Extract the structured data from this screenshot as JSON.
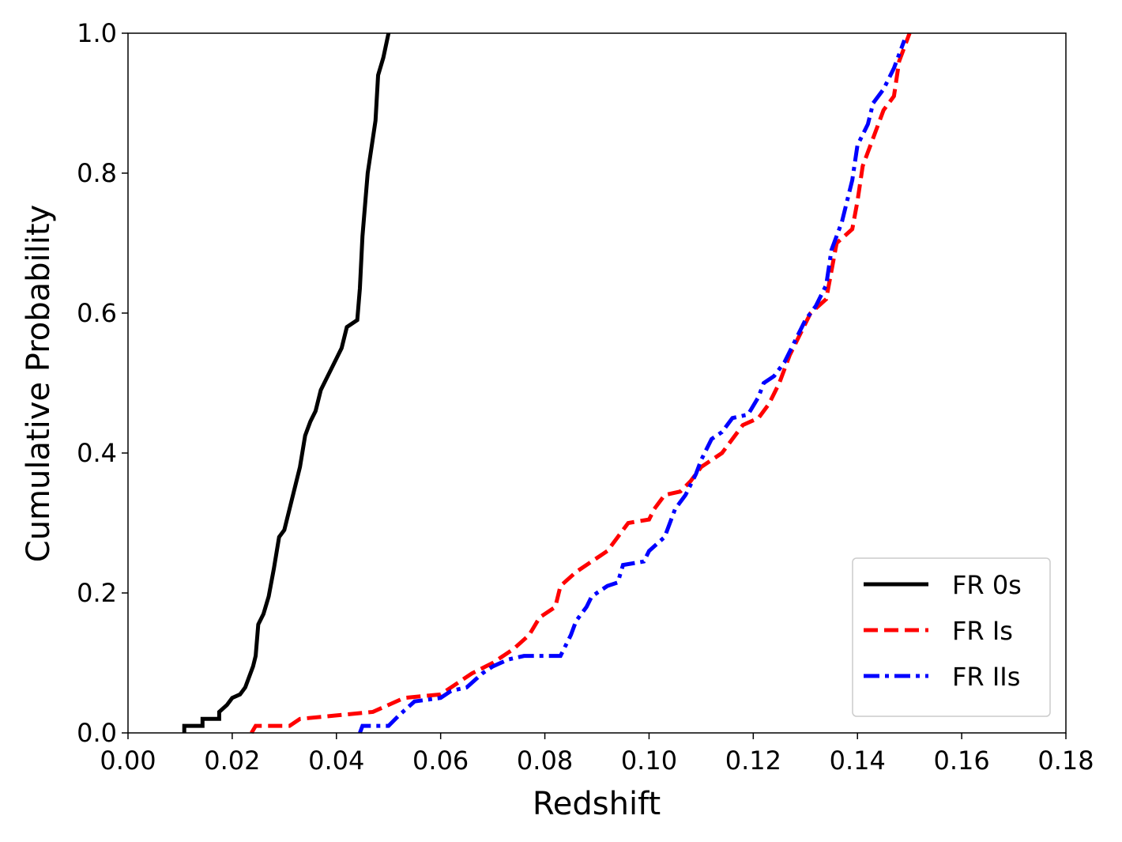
{
  "chart_data": {
    "type": "line",
    "xlabel": "Redshift",
    "ylabel": "Cumulative Probability",
    "xlim": [
      0,
      0.18
    ],
    "ylim": [
      0,
      1
    ],
    "xticks": [
      {
        "value": 0,
        "label": "0.00"
      },
      {
        "value": 0.02,
        "label": "0.02"
      },
      {
        "value": 0.04,
        "label": "0.04"
      },
      {
        "value": 0.06,
        "label": "0.06"
      },
      {
        "value": 0.08,
        "label": "0.08"
      },
      {
        "value": 0.1,
        "label": "0.10"
      },
      {
        "value": 0.12,
        "label": "0.12"
      },
      {
        "value": 0.14,
        "label": "0.14"
      },
      {
        "value": 0.16,
        "label": "0.16"
      },
      {
        "value": 0.18,
        "label": "0.18"
      }
    ],
    "yticks": [
      {
        "value": 0,
        "label": "0.0"
      },
      {
        "value": 0.2,
        "label": "0.2"
      },
      {
        "value": 0.4,
        "label": "0.4"
      },
      {
        "value": 0.6,
        "label": "0.6"
      },
      {
        "value": 0.8,
        "label": "0.8"
      },
      {
        "value": 1,
        "label": "1.0"
      }
    ],
    "legend": "lower right",
    "series": [
      {
        "name": "FR 0s",
        "color": "#000000",
        "style": "solid",
        "x": [
          0.0108,
          0.0108,
          0.0143,
          0.0143,
          0.0175,
          0.0175,
          0.019,
          0.02,
          0.0215,
          0.0225,
          0.023,
          0.024,
          0.0245,
          0.025,
          0.026,
          0.027,
          0.028,
          0.029,
          0.03,
          0.031,
          0.032,
          0.033,
          0.034,
          0.035,
          0.036,
          0.037,
          0.038,
          0.039,
          0.041,
          0.042,
          0.044,
          0.0445,
          0.045,
          0.046,
          0.0475,
          0.048,
          0.049,
          0.05
        ],
        "values": [
          0,
          0.01,
          0.01,
          0.02,
          0.02,
          0.03,
          0.04,
          0.05,
          0.055,
          0.065,
          0.075,
          0.095,
          0.11,
          0.155,
          0.17,
          0.195,
          0.235,
          0.28,
          0.29,
          0.32,
          0.35,
          0.38,
          0.425,
          0.445,
          0.46,
          0.49,
          0.505,
          0.52,
          0.55,
          0.58,
          0.59,
          0.635,
          0.71,
          0.8,
          0.875,
          0.94,
          0.965,
          1.0
        ]
      },
      {
        "name": "FR Is",
        "color": "#ff0000",
        "style": "dashed",
        "x": [
          0.0237,
          0.0245,
          0.031,
          0.033,
          0.04,
          0.047,
          0.05,
          0.053,
          0.06,
          0.063,
          0.066,
          0.07,
          0.074,
          0.077,
          0.079,
          0.082,
          0.083,
          0.086,
          0.089,
          0.092,
          0.094,
          0.096,
          0.1,
          0.101,
          0.103,
          0.106,
          0.108,
          0.11,
          0.114,
          0.118,
          0.121,
          0.123,
          0.125,
          0.127,
          0.129,
          0.131,
          0.134,
          0.135,
          0.136,
          0.139,
          0.14,
          0.141,
          0.143,
          0.145,
          0.147,
          0.148,
          0.15
        ],
        "values": [
          0,
          0.01,
          0.01,
          0.02,
          0.025,
          0.03,
          0.04,
          0.05,
          0.055,
          0.07,
          0.085,
          0.1,
          0.12,
          0.14,
          0.165,
          0.18,
          0.21,
          0.23,
          0.245,
          0.26,
          0.28,
          0.3,
          0.305,
          0.32,
          0.34,
          0.345,
          0.36,
          0.38,
          0.4,
          0.44,
          0.45,
          0.47,
          0.5,
          0.54,
          0.57,
          0.6,
          0.62,
          0.66,
          0.7,
          0.72,
          0.76,
          0.81,
          0.85,
          0.89,
          0.91,
          0.96,
          1.0
        ]
      },
      {
        "name": "FR IIs",
        "color": "#0000ff",
        "style": "dashdot",
        "x": [
          0.0445,
          0.045,
          0.05,
          0.052,
          0.055,
          0.06,
          0.062,
          0.065,
          0.068,
          0.07,
          0.073,
          0.076,
          0.083,
          0.085,
          0.086,
          0.088,
          0.089,
          0.092,
          0.094,
          0.095,
          0.099,
          0.1,
          0.103,
          0.104,
          0.105,
          0.107,
          0.109,
          0.11,
          0.112,
          0.114,
          0.116,
          0.119,
          0.121,
          0.122,
          0.124,
          0.126,
          0.128,
          0.13,
          0.132,
          0.134,
          0.135,
          0.137,
          0.138,
          0.139,
          0.14,
          0.142,
          0.143,
          0.145,
          0.147,
          0.149
        ],
        "values": [
          0,
          0.01,
          0.01,
          0.025,
          0.045,
          0.05,
          0.06,
          0.065,
          0.085,
          0.095,
          0.105,
          0.11,
          0.11,
          0.14,
          0.16,
          0.18,
          0.195,
          0.21,
          0.215,
          0.24,
          0.245,
          0.26,
          0.28,
          0.3,
          0.32,
          0.34,
          0.37,
          0.39,
          0.42,
          0.43,
          0.45,
          0.455,
          0.48,
          0.5,
          0.51,
          0.53,
          0.56,
          0.59,
          0.61,
          0.64,
          0.69,
          0.73,
          0.76,
          0.79,
          0.84,
          0.87,
          0.9,
          0.92,
          0.95,
          0.99
        ]
      }
    ]
  }
}
